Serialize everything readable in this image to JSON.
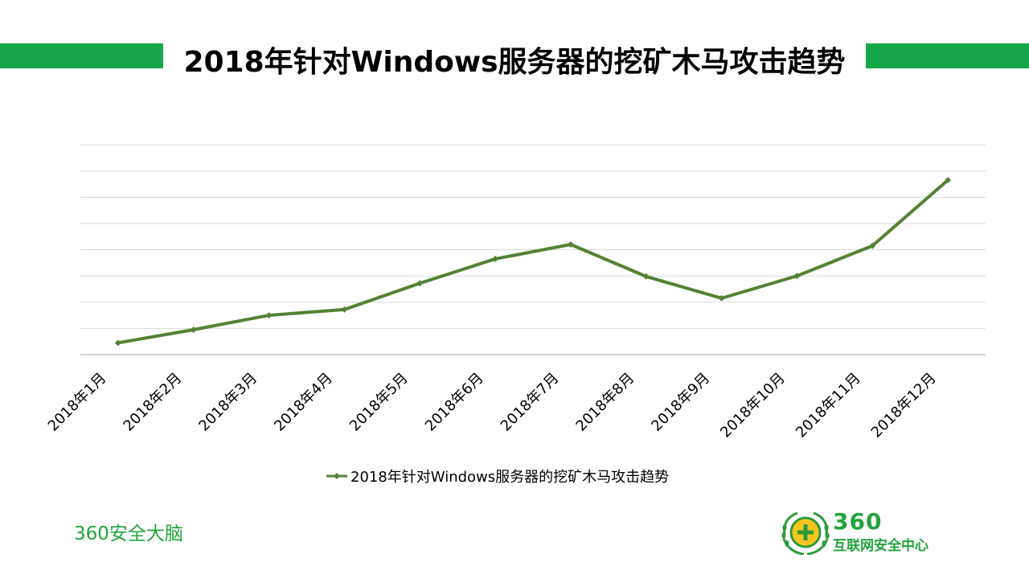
{
  "page": {
    "title": "2018年针对Windows服务器的挖矿木马攻击趋势",
    "footer_left": "360安全大脑",
    "logo_number": "360",
    "logo_text": "互联网安全中心",
    "colors": {
      "accent_green": "#14a84a",
      "line_green": "#548235",
      "brand_text_green": "#22a33c",
      "logo_yellow": "#f7c51f"
    }
  },
  "chart_data": {
    "type": "line",
    "title": "",
    "xlabel": "",
    "ylabel": "",
    "categories": [
      "2018年1月",
      "2018年2月",
      "2018年3月",
      "2018年4月",
      "2018年5月",
      "2018年6月",
      "2018年7月",
      "2018年8月",
      "2018年9月",
      "2018年10月",
      "2018年11月",
      "2018年12月"
    ],
    "series": [
      {
        "name": "2018年针对Windows服务器的挖矿木马攻击趋势",
        "values": [
          0.45,
          0.95,
          1.5,
          1.72,
          2.72,
          3.65,
          4.2,
          2.98,
          2.15,
          3.0,
          4.15,
          6.65
        ]
      }
    ],
    "ylim": [
      0,
      8
    ],
    "grid": true,
    "y_tick_labels_shown": false,
    "legend": "bottom-center",
    "marker": "diamond"
  }
}
